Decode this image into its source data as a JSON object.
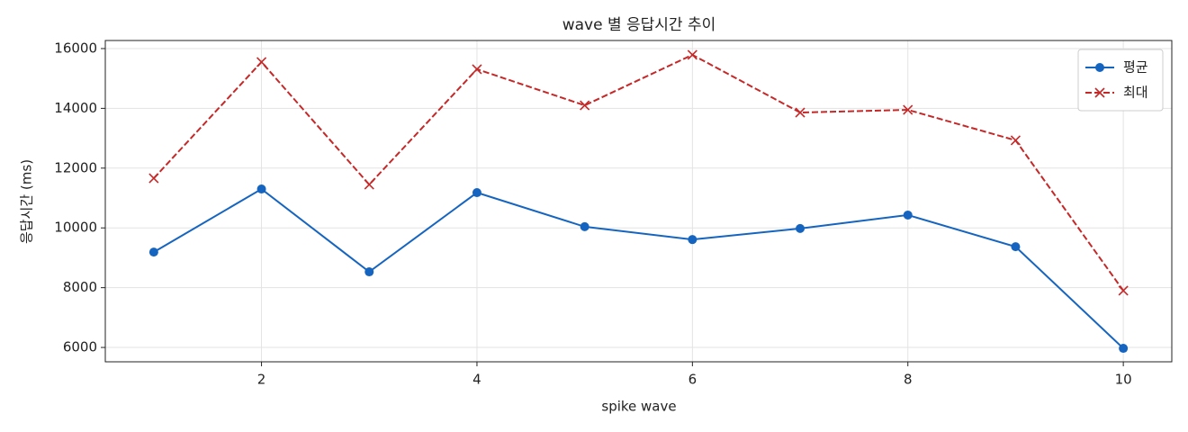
{
  "chart_data": {
    "type": "line",
    "title": "wave 별 응답시간 추이",
    "xlabel": "spike wave",
    "ylabel": "응답시간 (ms)",
    "x": [
      1,
      2,
      3,
      4,
      5,
      6,
      7,
      8,
      9,
      10
    ],
    "series": [
      {
        "name": "평균",
        "color": "#1565c0",
        "linestyle": "solid",
        "marker": "circle",
        "values": [
          9190,
          11300,
          8530,
          11180,
          10040,
          9610,
          9980,
          10430,
          9370,
          5970
        ]
      },
      {
        "name": "최대",
        "color": "#c62828",
        "linestyle": "dashed",
        "marker": "x",
        "values": [
          11660,
          15550,
          11450,
          15310,
          14100,
          15790,
          13860,
          13950,
          12930,
          7900
        ]
      }
    ],
    "xlim": [
      0.55,
      10.45
    ],
    "ylim": [
      5520,
      16270
    ],
    "xticks": [
      2,
      4,
      6,
      8,
      10
    ],
    "yticks": [
      6000,
      8000,
      10000,
      12000,
      14000,
      16000
    ],
    "grid": true,
    "legend": "upper right"
  }
}
